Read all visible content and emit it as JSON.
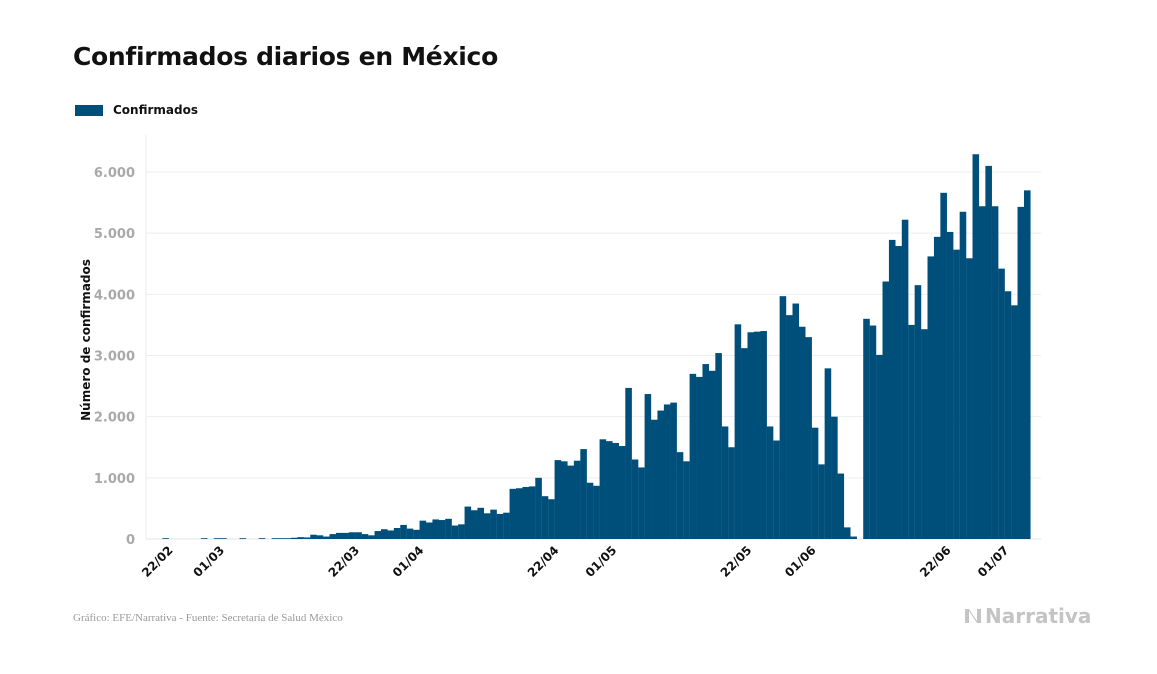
{
  "title": "Confirmados diarios en México",
  "legend": [
    {
      "label": "Confirmados",
      "color": "#004f7a"
    }
  ],
  "footer": {
    "source": "Gráfico: EFE/Narrativa - Fuente: Secretaría de Salud México",
    "brand": "Narrativa"
  },
  "chart_data": {
    "type": "bar",
    "title": "Confirmados diarios en México",
    "xlabel": "",
    "ylabel": "Número de confirmados",
    "ylim": [
      0,
      6500
    ],
    "yticks": [
      0,
      1000,
      2000,
      3000,
      4000,
      5000,
      6000
    ],
    "ytick_labels": [
      "0",
      "1.000",
      "2.000",
      "3.000",
      "4.000",
      "5.000",
      "6.000"
    ],
    "grid": true,
    "legend_position": "top-left",
    "color": "#004f7a",
    "start_date": "20/02",
    "xtick_labels": [
      {
        "label": "22/02",
        "index": 2
      },
      {
        "label": "01/03",
        "index": 10
      },
      {
        "label": "22/03",
        "index": 31
      },
      {
        "label": "01/04",
        "index": 41
      },
      {
        "label": "22/04",
        "index": 62
      },
      {
        "label": "01/05",
        "index": 71
      },
      {
        "label": "22/05",
        "index": 92
      },
      {
        "label": "01/06",
        "index": 102
      },
      {
        "label": "22/06",
        "index": 123
      },
      {
        "label": "01/07",
        "index": 132
      }
    ],
    "values": [
      0,
      0,
      1,
      0,
      0,
      0,
      0,
      0,
      1,
      0,
      1,
      2,
      0,
      0,
      1,
      0,
      0,
      1,
      0,
      3,
      5,
      6,
      20,
      30,
      25,
      70,
      60,
      40,
      80,
      100,
      100,
      110,
      110,
      80,
      60,
      130,
      160,
      140,
      180,
      230,
      170,
      150,
      300,
      270,
      320,
      310,
      330,
      220,
      240,
      530,
      470,
      510,
      420,
      480,
      410,
      430,
      820,
      830,
      850,
      860,
      1000,
      700,
      650,
      1290,
      1270,
      1200,
      1280,
      1470,
      920,
      870,
      1630,
      1600,
      1570,
      1520,
      2470,
      1300,
      1170,
      2370,
      1950,
      2100,
      2200,
      2230,
      1420,
      1270,
      2700,
      2650,
      2860,
      2750,
      3040,
      1840,
      1500,
      3510,
      3120,
      3380,
      3390,
      3400,
      1840,
      1610,
      3970,
      3660,
      3850,
      3470,
      3300,
      1820,
      1220,
      2790,
      2000,
      1070,
      190,
      40,
      0,
      3600,
      3490,
      3010,
      4210,
      4890,
      4790,
      5220,
      3500,
      4150,
      3430,
      4620,
      4940,
      5660,
      5020,
      4730,
      5350,
      4590,
      6290,
      5440,
      6100,
      5440,
      4420,
      4050,
      3820,
      5430,
      5700
    ]
  }
}
